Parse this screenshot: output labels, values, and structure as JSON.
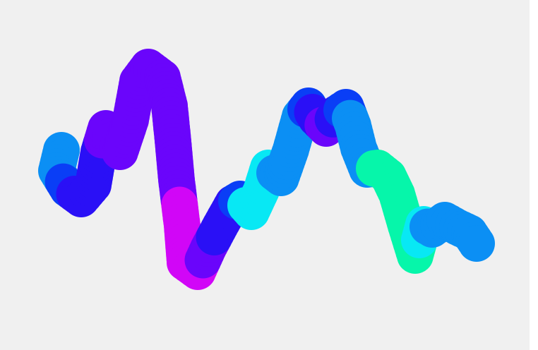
{
  "canvas": {
    "background": "#f0f0f0",
    "edge_color": "#ffffff"
  },
  "stroke": {
    "description_icon": "gradient-brush-stroke",
    "colors": {
      "blue": "#0b8ff4",
      "deep_blue": "#2a10f6",
      "violet": "#6a05fb",
      "magenta": "#d106f7",
      "cyan": "#08e8f4",
      "mint": "#06f6aa",
      "royal_blue": "#0a3ef6"
    }
  }
}
